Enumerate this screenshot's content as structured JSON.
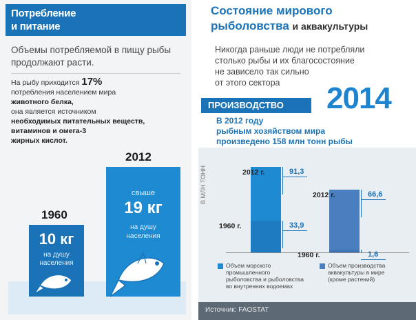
{
  "left": {
    "header_line1": "Потребление",
    "header_line2": "и питание",
    "subtitle": "Объемы потребляемой в пищу рыбы продолжают расти.",
    "body_pre": "На рыбу приходится ",
    "body_pct": "17%",
    "body_line2": "потребления населением мира",
    "body_line3": "животного белка,",
    "body_line4": "она является источником",
    "body_line5": "необходимых питательных веществ,",
    "body_line6": "витаминов и омега-3",
    "body_line7": "жирных кислот.",
    "year_1960": "1960",
    "year_2012": "2012",
    "val_1960": "10 кг",
    "per_capita_1960_a": "на душу",
    "per_capita_1960_b": "населения",
    "above_2012": "свыше",
    "val_2012": "19 кг",
    "per_capita_2012_a": "на душу",
    "per_capita_2012_b": "населения"
  },
  "right": {
    "title_line1": "Состояние мирового",
    "title_line2_a": "рыболовства ",
    "title_line2_b": "и аквакультуры",
    "intro_line1": "Никогда раньше люди не потребляли",
    "intro_line2": "столько рыбы и их благосостояние",
    "intro_line3": "не зависело так сильно",
    "intro_line4": "от этого сектора",
    "production_label": "ПРОИЗВОДСТВО",
    "year_big": "2014",
    "prod_line1": "В 2012 году",
    "prod_line2": "рыбным хозяйством мира",
    "prod_line3": "произведено 158 млн тонн рыбы",
    "axis_label": "В МЛН ТОНН",
    "source": "Источник: FAOSTAT"
  },
  "chart_data": {
    "type": "bar",
    "ylabel": "В МЛН ТОНН",
    "series": [
      {
        "name": "Объем морского промышленного рыболовства и рыболовства во внутренних водоемах",
        "color": "#1e8ad2",
        "points": [
          {
            "label": "1960 г.",
            "value": 33.9,
            "value_text": "33,9"
          },
          {
            "label": "2012 г.",
            "value": 91.3,
            "value_text": "91,3"
          }
        ]
      },
      {
        "name": "Объем производства аквакультуры в мире (кроме растений)",
        "color": "#4a7fbf",
        "points": [
          {
            "label": "1960 г.",
            "value": 1.6,
            "value_text": "1,6"
          },
          {
            "label": "2012 г.",
            "value": 66.6,
            "value_text": "66,6"
          }
        ]
      }
    ],
    "legend_1_lines": [
      "Объем морского",
      "промышленного",
      "рыболовства и рыболовства",
      "во внутренних водоемах"
    ],
    "legend_2_lines": [
      "Объем производства",
      "аквакультуры в мире",
      "(кроме растений)"
    ]
  }
}
